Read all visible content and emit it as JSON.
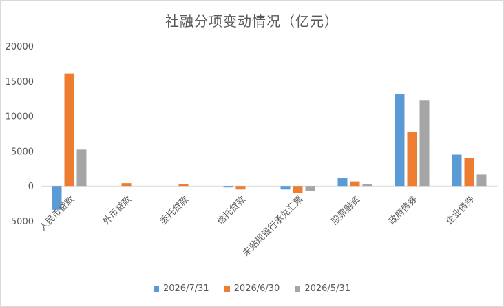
{
  "chart_data": {
    "type": "bar",
    "title": "社融分项变动情况（亿元）",
    "categories": [
      "人民币贷款",
      "外币贷款",
      "委托贷款",
      "信托贷款",
      "未贴现银行承兑汇票",
      "股票融资",
      "政府债券",
      "企业债券"
    ],
    "series": [
      {
        "name": "2026/7/31",
        "color": "#5B9BD5",
        "values": [
          -3400,
          0,
          0,
          -200,
          -500,
          1100,
          13200,
          4500
        ]
      },
      {
        "name": "2026/6/30",
        "color": "#ED7D31",
        "values": [
          16100,
          400,
          250,
          -500,
          -1000,
          650,
          7700,
          4000
        ]
      },
      {
        "name": "2026/5/31",
        "color": "#A5A5A5",
        "values": [
          5200,
          0,
          0,
          0,
          -700,
          300,
          12200,
          1650
        ]
      }
    ],
    "yticks": [
      "-5000",
      "0",
      "5000",
      "10000",
      "15000",
      "20000"
    ],
    "ylim": [
      -5000,
      20000
    ],
    "grid": false,
    "legend_position": "bottom"
  }
}
